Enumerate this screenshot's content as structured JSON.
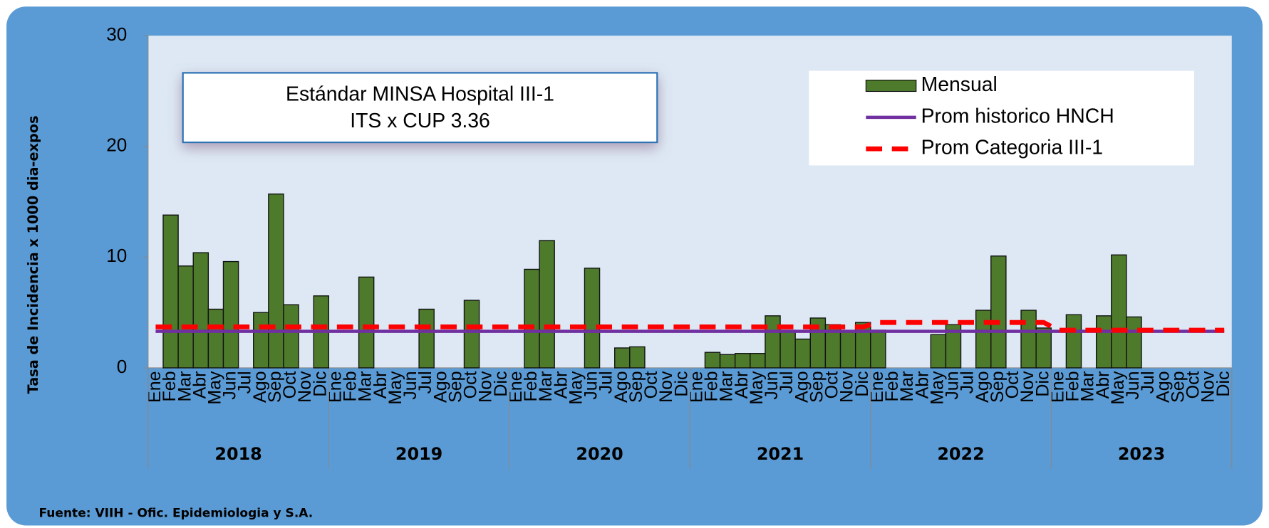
{
  "chart_data": {
    "type": "bar",
    "ylabel": "Tasa de Incidencia x 1000 dia-expos",
    "source": "Fuente: VIIH - Ofic. Epidemiologia y S.A.",
    "annotation": [
      "Estándar MINSA Hospital III-1",
      "ITS x CUP 3.36"
    ],
    "categories": [
      "Ene",
      "Feb",
      "Mar",
      "Abr",
      "May",
      "Jun",
      "Jul",
      "Ago",
      "Sep",
      "Oct",
      "Nov",
      "Dic",
      "Ene",
      "Feb",
      "Mar",
      "Abr",
      "May",
      "Jun",
      "Jul",
      "Ago",
      "Sep",
      "Oct",
      "Nov",
      "Dic",
      "Ene",
      "Feb",
      "Mar",
      "Abr",
      "May",
      "Jun",
      "Jul",
      "Ago",
      "Sep",
      "Oct",
      "Nov",
      "Dic",
      "Ene",
      "Feb",
      "Mar",
      "Abr",
      "May",
      "Jun",
      "Jul",
      "Ago",
      "Sep",
      "Oct",
      "Nov",
      "Dic",
      "Ene",
      "Feb",
      "Mar",
      "Abr",
      "May",
      "Jun",
      "Jul",
      "Ago",
      "Sep",
      "Oct",
      "Nov",
      "Dic",
      "Ene",
      "Feb",
      "Mar",
      "Abr",
      "May",
      "Jun",
      "Jul",
      "Ago",
      "Sep",
      "Oct",
      "Nov",
      "Dic"
    ],
    "groups": [
      "2018",
      "2019",
      "2020",
      "2021",
      "2022",
      "2023"
    ],
    "ylim": [
      0,
      30
    ],
    "yticks": [
      0,
      10,
      20,
      30
    ],
    "legend": "upper right",
    "series": [
      {
        "name": "Mensual",
        "type": "bar",
        "color": "#4e7a2c",
        "values": [
          0,
          13.8,
          9.2,
          10.4,
          5.3,
          9.6,
          0,
          5.0,
          15.7,
          5.7,
          0,
          6.5,
          0,
          0,
          8.2,
          0,
          0,
          0,
          5.3,
          0,
          0,
          6.1,
          0,
          0,
          0,
          8.9,
          11.5,
          0,
          0,
          9.0,
          0,
          1.8,
          1.9,
          0,
          0,
          0,
          0,
          1.4,
          1.2,
          1.3,
          1.3,
          4.7,
          3.4,
          2.6,
          4.5,
          3.9,
          3.3,
          4.1,
          3.4,
          0,
          0,
          0,
          3.0,
          3.9,
          0,
          5.2,
          10.1,
          0,
          5.2,
          3.6,
          0,
          4.8,
          0,
          4.7,
          10.2,
          4.6,
          0,
          0,
          0,
          0,
          0,
          0
        ]
      },
      {
        "name": "Prom historico HNCH",
        "type": "line",
        "color": "#7030a0",
        "values": [
          3.3,
          3.3,
          3.3,
          3.3,
          3.3,
          3.3,
          3.3,
          3.3,
          3.3,
          3.3,
          3.3,
          3.3,
          3.3,
          3.3,
          3.3,
          3.3,
          3.3,
          3.3,
          3.3,
          3.3,
          3.3,
          3.3,
          3.3,
          3.3,
          3.3,
          3.3,
          3.3,
          3.3,
          3.3,
          3.3,
          3.3,
          3.3,
          3.3,
          3.3,
          3.3,
          3.3,
          3.3,
          3.3,
          3.3,
          3.3,
          3.3,
          3.3,
          3.3,
          3.3,
          3.3,
          3.3,
          3.3,
          3.3,
          3.3,
          3.3,
          3.3,
          3.3,
          3.3,
          3.3,
          3.3,
          3.3,
          3.3,
          3.3,
          3.3,
          3.3,
          3.3,
          3.3,
          3.3,
          3.3,
          3.3,
          3.3,
          3.3,
          3.3,
          3.3,
          3.3,
          3.3,
          3.3
        ]
      },
      {
        "name": "Prom Categoria III-1",
        "type": "line",
        "dashed": true,
        "color": "#ff0000",
        "values": [
          3.7,
          3.7,
          3.7,
          3.7,
          3.7,
          3.7,
          3.7,
          3.7,
          3.7,
          3.7,
          3.7,
          3.7,
          3.7,
          3.7,
          3.7,
          3.7,
          3.7,
          3.7,
          3.7,
          3.7,
          3.7,
          3.7,
          3.7,
          3.7,
          3.7,
          3.7,
          3.7,
          3.7,
          3.7,
          3.7,
          3.7,
          3.7,
          3.7,
          3.7,
          3.7,
          3.7,
          3.7,
          3.7,
          3.7,
          3.7,
          3.7,
          3.7,
          3.7,
          3.7,
          3.7,
          3.7,
          3.7,
          3.7,
          4.1,
          4.1,
          4.1,
          4.1,
          4.1,
          4.1,
          4.1,
          4.1,
          4.1,
          4.1,
          4.1,
          4.1,
          3.4,
          3.4,
          3.4,
          3.4,
          3.4,
          3.4,
          3.4,
          3.4,
          3.4,
          3.4,
          3.4,
          3.4
        ]
      }
    ]
  }
}
